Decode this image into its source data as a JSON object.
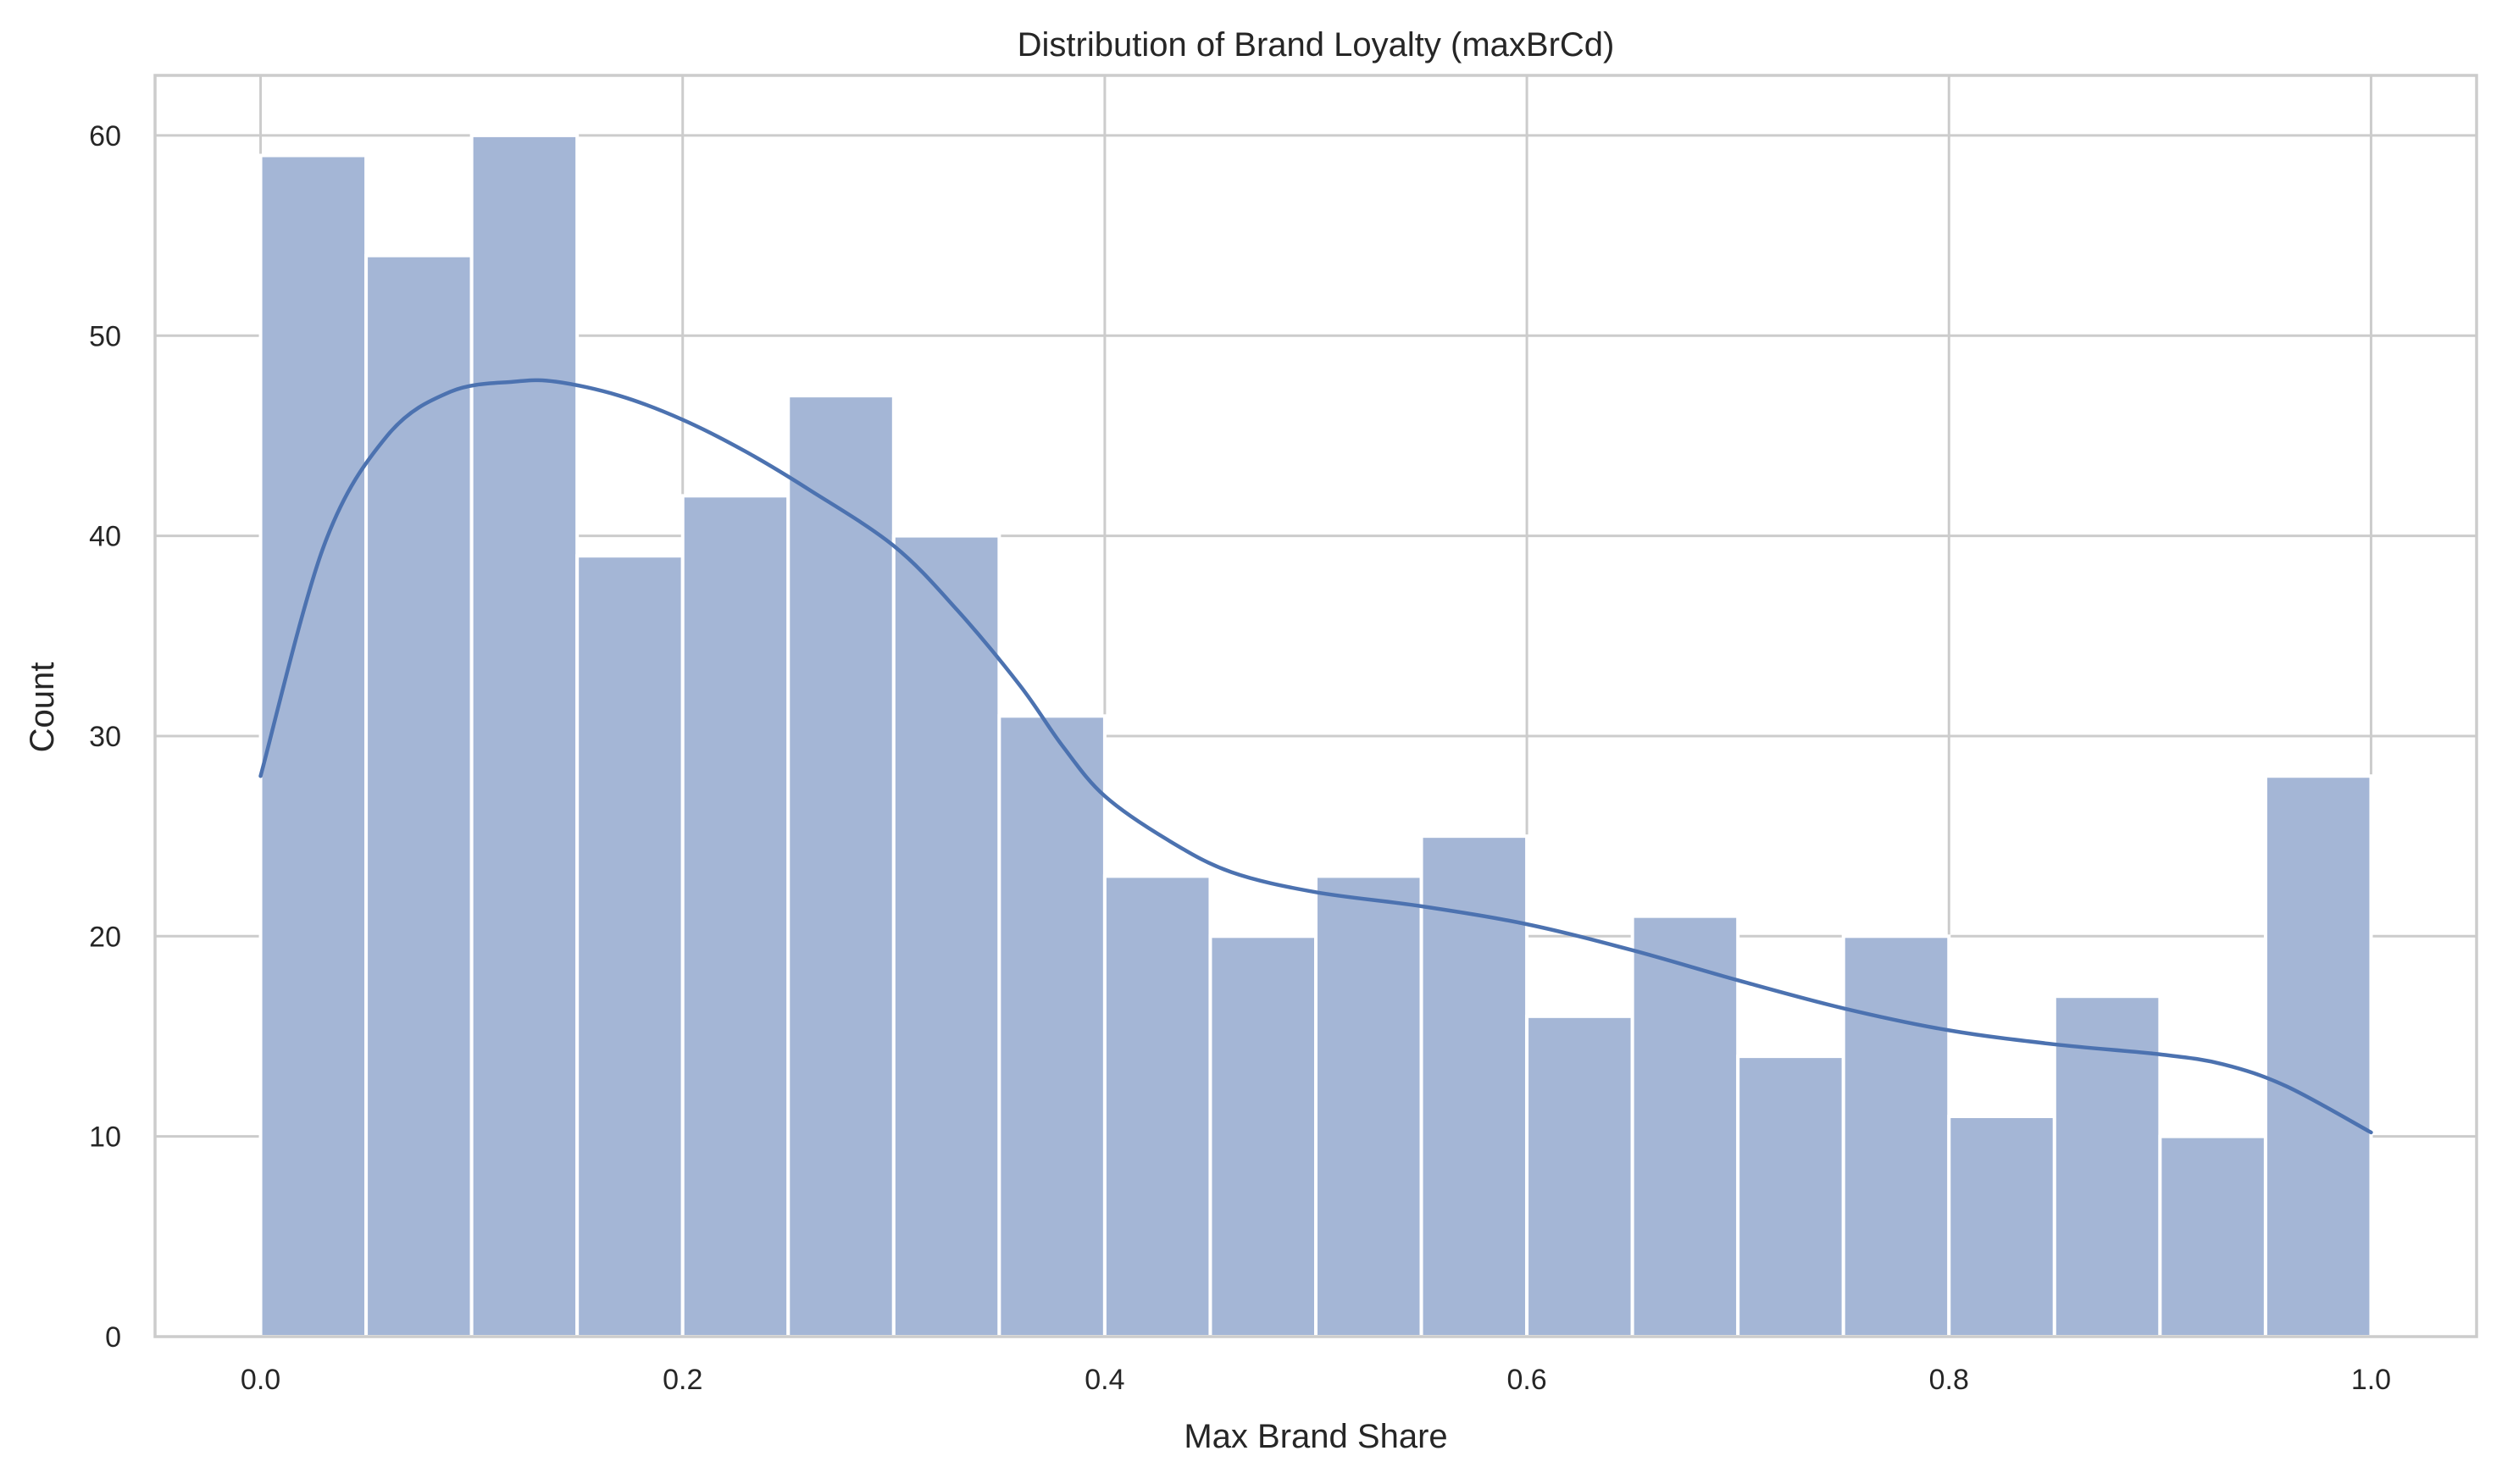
{
  "chart_data": {
    "type": "bar",
    "subtype": "histogram",
    "title": "Distribution of Brand Loyalty (maxBrCd)",
    "xlabel": "Max Brand Share",
    "ylabel": "Count",
    "xlim": [
      -0.05,
      1.05
    ],
    "ylim": [
      0,
      63
    ],
    "xticks": [
      0.0,
      0.2,
      0.4,
      0.6,
      0.8,
      1.0
    ],
    "xtick_labels": [
      "0.0",
      "0.2",
      "0.4",
      "0.6",
      "0.8",
      "1.0"
    ],
    "yticks": [
      0,
      10,
      20,
      30,
      40,
      50,
      60
    ],
    "ytick_labels": [
      "0",
      "10",
      "20",
      "30",
      "40",
      "50",
      "60"
    ],
    "grid": true,
    "bin_edges": [
      0.0,
      0.05,
      0.1,
      0.15,
      0.2,
      0.25,
      0.3,
      0.35,
      0.4,
      0.45,
      0.5,
      0.55,
      0.6,
      0.65,
      0.7,
      0.75,
      0.8,
      0.85,
      0.9,
      0.95,
      1.0
    ],
    "values": [
      59,
      54,
      60,
      39,
      42,
      47,
      40,
      31,
      23,
      20,
      23,
      25,
      16,
      21,
      14,
      20,
      11,
      17,
      10,
      28
    ],
    "kde": {
      "x": [
        0.0,
        0.03,
        0.06,
        0.09,
        0.12,
        0.14,
        0.17,
        0.2,
        0.23,
        0.26,
        0.3,
        0.33,
        0.36,
        0.38,
        0.4,
        0.43,
        0.46,
        0.5,
        0.55,
        0.6,
        0.65,
        0.7,
        0.75,
        0.8,
        0.85,
        0.9,
        0.93,
        0.96,
        1.0
      ],
      "y": [
        28,
        39.5,
        45,
        47.2,
        47.7,
        47.7,
        47,
        45.8,
        44.2,
        42.3,
        39.5,
        36.3,
        32.5,
        29.5,
        27,
        24.8,
        23.2,
        22.2,
        21.5,
        20.6,
        19.3,
        17.8,
        16.4,
        15.3,
        14.6,
        14.1,
        13.6,
        12.5,
        10.2
      ]
    },
    "colors": {
      "bar_fill": "#a4b6d6",
      "kde_line": "#4c72b0",
      "grid": "#cccccc",
      "background": "#ffffff"
    }
  }
}
